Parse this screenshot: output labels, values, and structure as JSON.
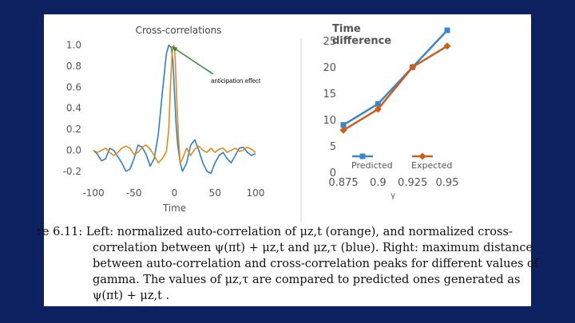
{
  "colors": {
    "background": "#0d2060",
    "blue": "#2f7fc1",
    "orange": "#e08a1e",
    "right_blue": "#3a86c8",
    "right_orange": "#c95f1e",
    "annotation_arrow": "#2e8b2e"
  },
  "chart_data": [
    {
      "type": "line",
      "title": "Cross-correlations",
      "xlabel": "Time",
      "ylabel": "",
      "xlim": [
        -105,
        105
      ],
      "ylim": [
        -0.3,
        1.05
      ],
      "xticks": [
        "-100",
        "-50",
        "0",
        "50",
        "100"
      ],
      "yticks": [
        "1.0",
        "0.8",
        "0.6",
        "0.4",
        "0.2",
        "0.0",
        "-0.2"
      ],
      "grid": false,
      "series": [
        {
          "color": "#2f7fc1",
          "x": [
            -100,
            -95,
            -90,
            -85,
            -80,
            -75,
            -70,
            -65,
            -60,
            -55,
            -50,
            -45,
            -40,
            -35,
            -30,
            -25,
            -20,
            -15,
            -10,
            -7,
            -4,
            -2,
            0,
            2,
            4,
            7,
            10,
            15,
            20,
            25,
            30,
            35,
            40,
            45,
            50,
            55,
            60,
            65,
            70,
            75,
            80,
            85,
            90,
            95,
            100
          ],
          "values": [
            0.0,
            -0.04,
            -0.1,
            -0.08,
            0.02,
            0.0,
            -0.06,
            -0.12,
            -0.2,
            -0.18,
            -0.08,
            0.05,
            0.03,
            -0.04,
            -0.15,
            -0.08,
            0.15,
            0.55,
            0.92,
            1.0,
            0.98,
            0.85,
            0.55,
            0.25,
            0.05,
            -0.12,
            -0.2,
            -0.12,
            0.05,
            0.1,
            0.0,
            -0.12,
            -0.2,
            -0.22,
            -0.12,
            -0.05,
            -0.02,
            -0.08,
            -0.12,
            -0.05,
            0.02,
            0.03,
            -0.02,
            -0.05,
            -0.03
          ]
        },
        {
          "color": "#e08a1e",
          "x": [
            -100,
            -95,
            -90,
            -85,
            -80,
            -75,
            -70,
            -65,
            -60,
            -55,
            -50,
            -45,
            -40,
            -35,
            -30,
            -25,
            -20,
            -15,
            -10,
            -7,
            -5,
            -3,
            -1,
            0,
            1,
            3,
            5,
            7,
            10,
            15,
            20,
            25,
            30,
            35,
            40,
            45,
            50,
            55,
            60,
            65,
            70,
            75,
            80,
            85,
            90,
            95,
            100
          ],
          "values": [
            0.0,
            -0.02,
            0.0,
            0.02,
            -0.02,
            -0.05,
            -0.02,
            0.02,
            0.04,
            0.02,
            -0.04,
            -0.02,
            0.03,
            0.05,
            0.01,
            -0.05,
            -0.12,
            -0.08,
            -0.01,
            0.2,
            0.6,
            0.92,
            1.0,
            0.98,
            0.85,
            0.45,
            0.1,
            -0.12,
            -0.08,
            0.02,
            -0.05,
            0.01,
            0.04,
            0.0,
            -0.02,
            0.02,
            -0.02,
            0.01,
            0.02,
            -0.02,
            0.0,
            0.02,
            -0.01,
            0.0,
            0.03,
            0.01,
            -0.02
          ]
        }
      ],
      "annotation": "anticipation effect"
    },
    {
      "type": "line",
      "title": "Time difference",
      "title_lines": [
        "Time",
        "difference"
      ],
      "xlabel": "γ",
      "ylabel": "",
      "categories": [
        "0.875",
        "0.9",
        "0.925",
        "0.95"
      ],
      "ylim": [
        0,
        27
      ],
      "yticks": [
        "0",
        "5",
        "10",
        "15",
        "20",
        "25"
      ],
      "grid": false,
      "legend": "bottom",
      "series": [
        {
          "name": "Predicted",
          "color": "#3a86c8",
          "marker": "square",
          "values": [
            9,
            13,
            20,
            27
          ]
        },
        {
          "name": "Expected",
          "color": "#c95f1e",
          "marker": "diamond",
          "values": [
            8,
            12,
            20,
            24
          ]
        }
      ]
    }
  ],
  "caption": {
    "lines": [
      "re 6.11: Left:  normalized auto-correlation of μz,t (orange), and normalized cross-",
      "correlation between ψ(πt) + μz,t and μz,τ (blue). Right: maximum distance",
      "between auto-correlation and cross-correlation peaks for different values of",
      "gamma. The values of μz,τ are compared to predicted ones generated as",
      "ψ(πt) + μz,t ."
    ]
  }
}
